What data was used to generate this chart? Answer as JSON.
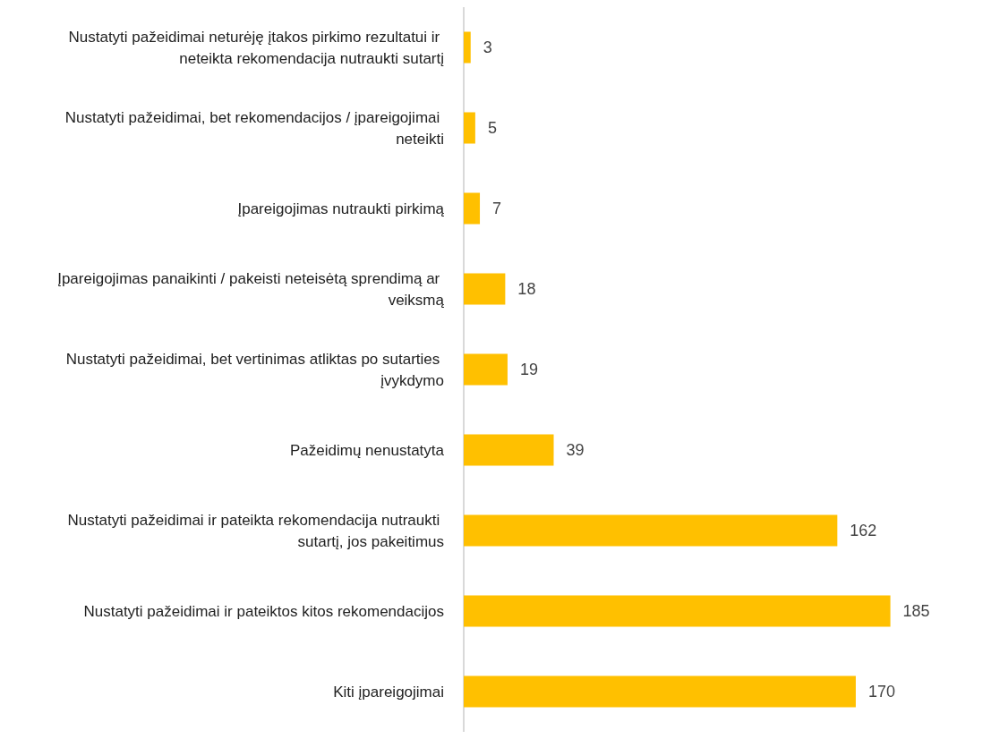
{
  "chart_data": {
    "type": "bar",
    "orientation": "horizontal",
    "categories": [
      "Nustatyti pažeidimai neturėję įtakos pirkimo rezultatui ir neteikta rekomendacija nutraukti sutartį",
      "Nustatyti pažeidimai, bet rekomendacijos / įpareigojimai neteikti",
      "Įpareigojimas nutraukti pirkimą",
      "Įpareigojimas panaikinti / pakeisti neteisėtą sprendimą ar veiksmą",
      "Nustatyti pažeidimai, bet vertinimas atliktas po sutarties įvykdymo",
      "Pažeidimų nenustatyta",
      "Nustatyti pažeidimai ir pateikta rekomendacija nutraukti sutartį, jos pakeitimus",
      "Nustatyti pažeidimai ir pateiktos kitos rekomendacijos",
      "Kiti įpareigojimai"
    ],
    "values": [
      3,
      5,
      7,
      18,
      19,
      39,
      162,
      185,
      170
    ],
    "color": "#ffc000",
    "data_labels": true
  }
}
